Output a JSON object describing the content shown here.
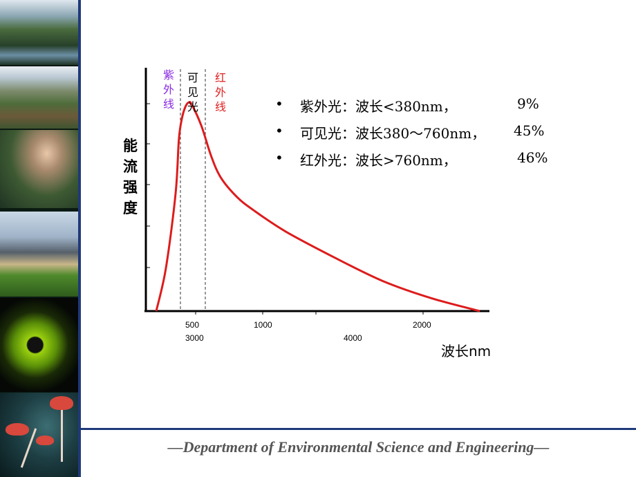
{
  "footer": {
    "text": "—Department of Environmental Science and Engineering—"
  },
  "band_labels": {
    "uv": {
      "text": "紫外线",
      "color": "#8a2be2"
    },
    "visible": {
      "text": "可见光",
      "color": "#000000"
    },
    "ir": {
      "text": "红外线",
      "color": "#e02020"
    }
  },
  "bullets": [
    {
      "marker": "•",
      "text": "紫外光：波长<380nm，",
      "pct": "9%"
    },
    {
      "marker": "•",
      "text": "可见光：波长380～760nm，",
      "pct": "45%"
    },
    {
      "marker": "•",
      "text": "红外光：波长>760nm，",
      "pct": "46%"
    }
  ],
  "chart_data": {
    "type": "line",
    "title": "",
    "ylabel": "能流强度",
    "xlabel": "波长nm",
    "x_ticks_row1": [
      "500",
      "1000",
      "2000"
    ],
    "x_ticks_row2": [
      "3000",
      "4000"
    ],
    "series": [
      {
        "color": "#dd1c1c",
        "x": [
          0,
          0.03,
          0.06,
          0.07,
          0.08,
          0.09,
          0.1,
          0.11,
          0.14,
          0.17,
          0.2,
          0.25,
          0.3,
          0.4,
          0.55,
          0.7,
          0.85,
          1.0
        ],
        "y": [
          0.0,
          0.2,
          0.55,
          0.8,
          0.9,
          0.95,
          0.97,
          0.96,
          0.86,
          0.72,
          0.62,
          0.53,
          0.47,
          0.37,
          0.25,
          0.14,
          0.06,
          0.0
        ]
      }
    ],
    "divider_lines": [
      "380nm",
      "760nm"
    ],
    "grid": false,
    "band_shares": {
      "uv": 9,
      "visible": 45,
      "ir": 46
    }
  }
}
